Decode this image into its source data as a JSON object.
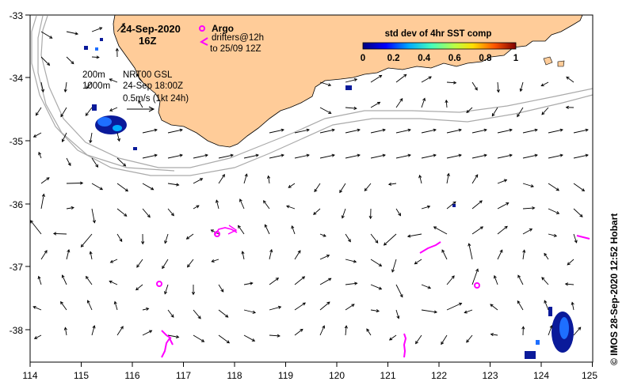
{
  "map": {
    "title_date": "24-Sep-2020",
    "title_hour": "16Z",
    "legend_argo": "Argo",
    "legend_drifters_1": "drifters@12h",
    "legend_drifters_2": "to 25/09 12Z",
    "depth_label_1": "200m",
    "depth_label_2": "1000m",
    "product_line_1": "NRT00 GSL",
    "product_line_2": "24-Sep 18:00Z",
    "scale_label": "0.5m/s (1kt 24h)",
    "colorbar_title": "std dev of 4hr SST comp",
    "colorbar_ticks": [
      "0",
      "0.2",
      "0.4",
      "0.6",
      "0.8",
      "1"
    ],
    "credit": "© IMOS 28-Sep-2020 12:52 Hobart",
    "x_ticks": [
      "114",
      "115",
      "116",
      "117",
      "118",
      "119",
      "120",
      "121",
      "122",
      "123",
      "124",
      "125"
    ],
    "y_ticks": [
      "-33",
      "-34",
      "-35",
      "-36",
      "-37",
      "-38"
    ],
    "colors": {
      "land": "#ffcc99",
      "argo": "#ff00ff",
      "drifter": "#ff00ff",
      "isobath": "#aaaaaa",
      "sst_low": "#000080",
      "sst_mid": "#00aaff"
    }
  }
}
